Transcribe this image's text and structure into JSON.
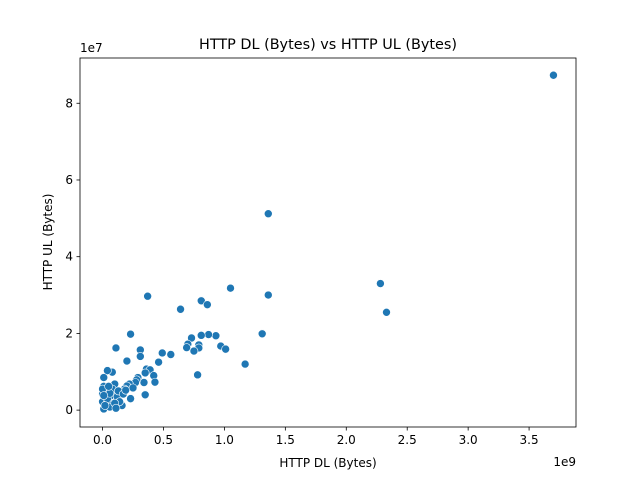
{
  "chart_data": {
    "type": "scatter",
    "title": "HTTP DL (Bytes) vs HTTP UL (Bytes)",
    "xlabel": "HTTP DL (Bytes)",
    "ylabel": "HTTP UL (Bytes)",
    "x_offset_text": "1e9",
    "y_offset_text": "1e7",
    "xlim": [
      -0.185,
      3.885
    ],
    "ylim": [
      -0.44,
      9.18
    ],
    "x_ticks": [
      0.0,
      0.5,
      1.0,
      1.5,
      2.0,
      2.5,
      3.0,
      3.5
    ],
    "x_tick_labels": [
      "0.0",
      "0.5",
      "1.0",
      "1.5",
      "2.0",
      "2.5",
      "3.0",
      "3.5"
    ],
    "y_ticks": [
      0,
      2,
      4,
      6,
      8
    ],
    "y_tick_labels": [
      "0",
      "2",
      "4",
      "6",
      "8"
    ],
    "grid": false,
    "legend": "none",
    "marker_color": "#1f77b4",
    "points": [
      {
        "x": 3.7,
        "y": 8.73
      },
      {
        "x": 1.36,
        "y": 5.12
      },
      {
        "x": 2.28,
        "y": 3.3
      },
      {
        "x": 2.33,
        "y": 2.55
      },
      {
        "x": 1.05,
        "y": 3.18
      },
      {
        "x": 1.36,
        "y": 3.0
      },
      {
        "x": 0.37,
        "y": 2.97
      },
      {
        "x": 0.81,
        "y": 2.85
      },
      {
        "x": 0.86,
        "y": 2.75
      },
      {
        "x": 0.64,
        "y": 2.63
      },
      {
        "x": 0.23,
        "y": 1.98
      },
      {
        "x": 1.31,
        "y": 1.99
      },
      {
        "x": 0.93,
        "y": 1.94
      },
      {
        "x": 0.87,
        "y": 1.97
      },
      {
        "x": 0.81,
        "y": 1.95
      },
      {
        "x": 0.73,
        "y": 1.88
      },
      {
        "x": 0.7,
        "y": 1.72
      },
      {
        "x": 0.69,
        "y": 1.63
      },
      {
        "x": 0.79,
        "y": 1.7
      },
      {
        "x": 0.79,
        "y": 1.62
      },
      {
        "x": 0.75,
        "y": 1.54
      },
      {
        "x": 0.97,
        "y": 1.67
      },
      {
        "x": 1.01,
        "y": 1.59
      },
      {
        "x": 0.11,
        "y": 1.62
      },
      {
        "x": 0.31,
        "y": 1.57
      },
      {
        "x": 0.31,
        "y": 1.4
      },
      {
        "x": 0.49,
        "y": 1.49
      },
      {
        "x": 0.56,
        "y": 1.45
      },
      {
        "x": 0.2,
        "y": 1.28
      },
      {
        "x": 0.46,
        "y": 1.25
      },
      {
        "x": 1.17,
        "y": 1.2
      },
      {
        "x": 0.78,
        "y": 0.92
      },
      {
        "x": 0.36,
        "y": 1.07
      },
      {
        "x": 0.39,
        "y": 1.05
      },
      {
        "x": 0.35,
        "y": 0.97
      },
      {
        "x": 0.42,
        "y": 0.9
      },
      {
        "x": 0.43,
        "y": 0.73
      },
      {
        "x": 0.34,
        "y": 0.72
      },
      {
        "x": 0.29,
        "y": 0.85
      },
      {
        "x": 0.28,
        "y": 0.79
      },
      {
        "x": 0.27,
        "y": 0.72
      },
      {
        "x": 0.22,
        "y": 0.68
      },
      {
        "x": 0.2,
        "y": 0.63
      },
      {
        "x": 0.18,
        "y": 0.55
      },
      {
        "x": 0.15,
        "y": 0.48
      },
      {
        "x": 0.35,
        "y": 0.4
      },
      {
        "x": 0.23,
        "y": 0.3
      },
      {
        "x": 0.16,
        "y": 0.12
      },
      {
        "x": 0.1,
        "y": 0.68
      },
      {
        "x": 0.08,
        "y": 0.99
      },
      {
        "x": 0.04,
        "y": 1.03
      },
      {
        "x": 0.01,
        "y": 0.85
      },
      {
        "x": 0.01,
        "y": 0.62
      },
      {
        "x": 0.03,
        "y": 0.5
      },
      {
        "x": 0.02,
        "y": 0.35
      },
      {
        "x": 0.0,
        "y": 0.42
      },
      {
        "x": 0.0,
        "y": 0.22
      },
      {
        "x": 0.01,
        "y": 0.03
      },
      {
        "x": 0.03,
        "y": 0.15
      },
      {
        "x": 0.05,
        "y": 0.25
      },
      {
        "x": 0.07,
        "y": 0.38
      },
      {
        "x": 0.09,
        "y": 0.48
      },
      {
        "x": 0.12,
        "y": 0.35
      },
      {
        "x": 0.06,
        "y": 0.08
      },
      {
        "x": 0.14,
        "y": 0.22
      },
      {
        "x": 0.1,
        "y": 0.18
      },
      {
        "x": 0.04,
        "y": 0.3
      },
      {
        "x": 0.02,
        "y": 0.12
      },
      {
        "x": 0.08,
        "y": 0.55
      },
      {
        "x": 0.06,
        "y": 0.44
      },
      {
        "x": 0.13,
        "y": 0.5
      },
      {
        "x": 0.17,
        "y": 0.42
      },
      {
        "x": 0.0,
        "y": 0.55
      },
      {
        "x": 0.01,
        "y": 0.38
      },
      {
        "x": 0.11,
        "y": 0.05
      },
      {
        "x": 0.19,
        "y": 0.52
      },
      {
        "x": 0.25,
        "y": 0.58
      },
      {
        "x": 0.05,
        "y": 0.62
      }
    ]
  }
}
